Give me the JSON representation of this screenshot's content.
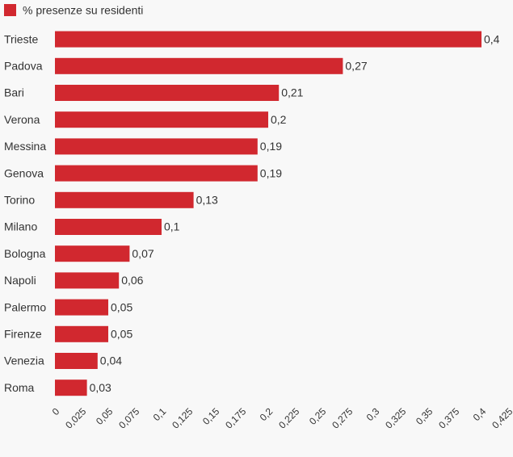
{
  "chart_data": {
    "type": "bar",
    "orientation": "horizontal",
    "categories": [
      "Trieste",
      "Padova",
      "Bari",
      "Verona",
      "Messina",
      "Genova",
      "Torino",
      "Milano",
      "Bologna",
      "Napoli",
      "Palermo",
      "Firenze",
      "Venezia",
      "Roma"
    ],
    "series": [
      {
        "name": "% presenze su residenti",
        "color": "#d1282f",
        "values": [
          0.4,
          0.27,
          0.21,
          0.2,
          0.19,
          0.19,
          0.13,
          0.1,
          0.07,
          0.06,
          0.05,
          0.05,
          0.04,
          0.03
        ],
        "value_labels": [
          "0,4",
          "0,27",
          "0,21",
          "0,2",
          "0,19",
          "0,19",
          "0,13",
          "0,1",
          "0,07",
          "0,06",
          "0,05",
          "0,05",
          "0,04",
          "0,03"
        ]
      }
    ],
    "xlim": [
      0,
      0.425
    ],
    "xticks": [
      0,
      {
        "value": 0.025,
        "label": "0,025"
      },
      {
        "value": 0.05,
        "label": "0,05"
      },
      {
        "value": 0.075,
        "label": "0,075"
      },
      {
        "value": 0.1,
        "label": "0,1"
      },
      {
        "value": 0.125,
        "label": "0,125"
      },
      {
        "value": 0.15,
        "label": "0,15"
      },
      {
        "value": 0.175,
        "label": "0,175"
      },
      {
        "value": 0.2,
        "label": "0,2"
      },
      {
        "value": 0.225,
        "label": "0,225"
      },
      {
        "value": 0.25,
        "label": "0,25"
      },
      {
        "value": 0.275,
        "label": "0,275"
      },
      {
        "value": 0.3,
        "label": "0,3"
      },
      {
        "value": 0.325,
        "label": "0,325"
      },
      {
        "value": 0.35,
        "label": "0,35"
      },
      {
        "value": 0.375,
        "label": "0,375"
      },
      {
        "value": 0.4,
        "label": "0,4"
      },
      {
        "value": 0.425,
        "label": "0,425"
      }
    ],
    "legend": "top-left",
    "grid": false
  }
}
